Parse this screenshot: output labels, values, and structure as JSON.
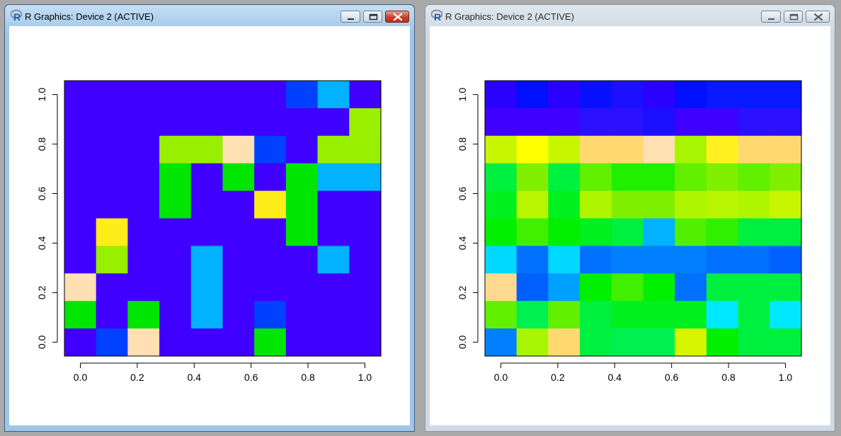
{
  "windows": [
    {
      "title": "R Graphics: Device 2 (ACTIVE)",
      "state": "active",
      "chart_data": {
        "type": "heatmap",
        "x_centers": [
          0,
          0.111,
          0.222,
          0.333,
          0.444,
          0.556,
          0.667,
          0.778,
          0.889,
          1.0
        ],
        "y_centers": [
          0,
          0.111,
          0.222,
          0.333,
          0.444,
          0.556,
          0.667,
          0.778,
          0.889,
          1.0
        ],
        "x_ticks": [
          "0.0",
          "0.2",
          "0.4",
          "0.6",
          "0.8",
          "1.0"
        ],
        "y_ticks": [
          "0.0",
          "0.2",
          "0.4",
          "0.6",
          "0.8",
          "1.0"
        ],
        "xlim": [
          -0.056,
          1.056
        ],
        "ylim": [
          -0.056,
          1.056
        ],
        "rows_top_to_bottom": [
          [
            "#4000FF",
            "#4000FF",
            "#4000FF",
            "#4000FF",
            "#4000FF",
            "#4000FF",
            "#4000FF",
            "#0040FF",
            "#00B2FF",
            "#4000FF"
          ],
          [
            "#4000FF",
            "#4000FF",
            "#4000FF",
            "#4000FF",
            "#4000FF",
            "#4000FF",
            "#4000FF",
            "#4000FF",
            "#4000FF",
            "#9BF000"
          ],
          [
            "#4000FF",
            "#4000FF",
            "#4000FF",
            "#98F000",
            "#98F000",
            "#FFE0B3",
            "#0040FF",
            "#4000FF",
            "#98F000",
            "#98F000"
          ],
          [
            "#4000FF",
            "#4000FF",
            "#4000FF",
            "#00E600",
            "#4000FF",
            "#00E600",
            "#4000FF",
            "#00E600",
            "#00B2FF",
            "#00B2FF"
          ],
          [
            "#4000FF",
            "#4000FF",
            "#4000FF",
            "#00E600",
            "#4000FF",
            "#4000FF",
            "#FFED1A",
            "#00E600",
            "#4000FF",
            "#4000FF"
          ],
          [
            "#4000FF",
            "#FFED1A",
            "#4000FF",
            "#4000FF",
            "#4000FF",
            "#4000FF",
            "#4000FF",
            "#00E600",
            "#4000FF",
            "#4000FF"
          ],
          [
            "#4000FF",
            "#98F000",
            "#4000FF",
            "#4000FF",
            "#00B2FF",
            "#4000FF",
            "#4000FF",
            "#4000FF",
            "#00B2FF",
            "#4000FF"
          ],
          [
            "#FFE0B3",
            "#4000FF",
            "#4000FF",
            "#4000FF",
            "#00B2FF",
            "#4000FF",
            "#4000FF",
            "#4000FF",
            "#4000FF",
            "#4000FF"
          ],
          [
            "#00E600",
            "#4000FF",
            "#00E600",
            "#4000FF",
            "#00B2FF",
            "#4000FF",
            "#0040FF",
            "#4000FF",
            "#4000FF",
            "#4000FF"
          ],
          [
            "#4000FF",
            "#0040FF",
            "#FFE0B3",
            "#4000FF",
            "#4000FF",
            "#4000FF",
            "#00E600",
            "#4000FF",
            "#4000FF",
            "#4000FF"
          ]
        ]
      }
    },
    {
      "title": "R Graphics: Device 2 (ACTIVE)",
      "state": "inactive",
      "chart_data": {
        "type": "heatmap",
        "x_centers": [
          0,
          0.111,
          0.222,
          0.333,
          0.444,
          0.556,
          0.667,
          0.778,
          0.889,
          1.0
        ],
        "y_centers": [
          0,
          0.111,
          0.222,
          0.333,
          0.444,
          0.556,
          0.667,
          0.778,
          0.889,
          1.0
        ],
        "x_ticks": [
          "0.0",
          "0.2",
          "0.4",
          "0.6",
          "0.8",
          "1.0"
        ],
        "y_ticks": [
          "0.0",
          "0.2",
          "0.4",
          "0.6",
          "0.8",
          "1.0"
        ],
        "xlim": [
          -0.056,
          1.056
        ],
        "ylim": [
          -0.056,
          1.056
        ],
        "rows_top_to_bottom": [
          [
            "#2A00FF",
            "#0010FF",
            "#2A00FF",
            "#0810FF",
            "#1A10FF",
            "#2A00FF",
            "#0010FF",
            "#0818FF",
            "#0818FF",
            "#0818FF"
          ],
          [
            "#4000FF",
            "#4000FF",
            "#4000FF",
            "#2A10FF",
            "#2A10FF",
            "#1A10FF",
            "#4000FF",
            "#4000FF",
            "#2A10FF",
            "#2A10FF"
          ],
          [
            "#C8F500",
            "#FFFF00",
            "#C8F500",
            "#FFD970",
            "#FFD970",
            "#FFE0B3",
            "#A8F500",
            "#FFF020",
            "#FFD970",
            "#FFD970"
          ],
          [
            "#00F040",
            "#80F000",
            "#00F040",
            "#60F000",
            "#20F000",
            "#20F000",
            "#60F000",
            "#80F000",
            "#60F000",
            "#80F000"
          ],
          [
            "#00F020",
            "#B8F500",
            "#00F020",
            "#B0F500",
            "#80F000",
            "#80F000",
            "#B0F500",
            "#B8F500",
            "#B0F500",
            "#C8F500"
          ],
          [
            "#00F000",
            "#40F000",
            "#00F000",
            "#00F020",
            "#00F040",
            "#00B2FF",
            "#50F000",
            "#30F000",
            "#00F040",
            "#00F040"
          ],
          [
            "#00D8FF",
            "#0070FF",
            "#00D8FF",
            "#0070FF",
            "#0080FF",
            "#0080FF",
            "#0080FF",
            "#0070FF",
            "#0070FF",
            "#0060FF"
          ],
          [
            "#FFD98F",
            "#0060FF",
            "#00A0FF",
            "#00F000",
            "#40F000",
            "#00F000",
            "#0070FF",
            "#00F040",
            "#00F040",
            "#00F040"
          ],
          [
            "#60F000",
            "#00F050",
            "#60F000",
            "#00F040",
            "#00F020",
            "#00F020",
            "#00F020",
            "#00E8FF",
            "#00F040",
            "#00E8FF"
          ],
          [
            "#0080FF",
            "#A8F500",
            "#FFD970",
            "#00F040",
            "#00F050",
            "#00F050",
            "#D8F500",
            "#00F000",
            "#00F040",
            "#00F040"
          ]
        ]
      }
    }
  ]
}
